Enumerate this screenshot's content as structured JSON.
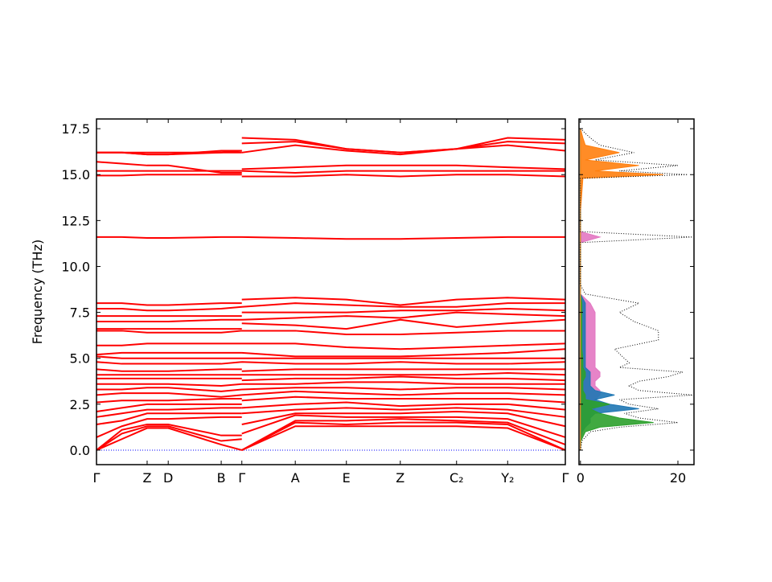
{
  "chart_data": [
    {
      "type": "line",
      "ylabel": "Frequency (THz)",
      "color": "#ff0000",
      "x": [
        0,
        0.54,
        1.08,
        1.53,
        2.66,
        3.1,
        3.1,
        3.1,
        4.24,
        5.33,
        6.48,
        7.68,
        8.77,
        10
      ],
      "xlim": [
        0,
        10
      ],
      "xticks": [
        {
          "value": 0,
          "label": "Γ"
        },
        {
          "value": 1.08,
          "label": "Z"
        },
        {
          "value": 1.53,
          "label": "D"
        },
        {
          "value": 2.66,
          "label": "B"
        },
        {
          "value": 3.1,
          "label": "Γ"
        },
        {
          "value": 4.24,
          "label": "A"
        },
        {
          "value": 5.33,
          "label": "E"
        },
        {
          "value": 6.48,
          "label": "Z"
        },
        {
          "value": 7.68,
          "label": "C₂"
        },
        {
          "value": 8.77,
          "label": "Y₂"
        },
        {
          "value": 10,
          "label": "Γ"
        }
      ],
      "ylim": [
        -0.79,
        18.03
      ],
      "yticks": [
        {
          "value": 0,
          "label": "0.0"
        },
        {
          "value": 2.5,
          "label": "2.5"
        },
        {
          "value": 5,
          "label": "5.0"
        },
        {
          "value": 7.5,
          "label": "7.5"
        },
        {
          "value": 10,
          "label": "10.0"
        },
        {
          "value": 12.5,
          "label": "12.5"
        },
        {
          "value": 15,
          "label": "15.0"
        },
        {
          "value": 17.5,
          "label": "17.5"
        }
      ],
      "series": [
        {
          "values": [
            0,
            0.6,
            1.2,
            1.2,
            0.3,
            0,
            null,
            0,
            1.3,
            1.3,
            1.3,
            1.3,
            1.2,
            0
          ]
        },
        {
          "values": [
            0,
            0.9,
            1.3,
            1.3,
            0.5,
            0.6,
            null,
            0,
            1.5,
            1.4,
            1.5,
            1.5,
            1.4,
            0
          ]
        },
        {
          "values": [
            0,
            1.1,
            1.4,
            1.4,
            0.8,
            0.8,
            null,
            0,
            1.6,
            1.6,
            1.7,
            1.6,
            1.5,
            0.3
          ]
        },
        {
          "values": [
            0.7,
            1.3,
            1.7,
            1.7,
            1.8,
            1.8,
            null,
            0.9,
            1.9,
            1.8,
            1.8,
            1.8,
            1.7,
            0.7
          ]
        },
        {
          "values": [
            1.4,
            1.6,
            2.0,
            2.0,
            2.0,
            2.0,
            null,
            1.4,
            2.0,
            2.0,
            2.0,
            2.1,
            2.0,
            1.3
          ]
        },
        {
          "values": [
            1.8,
            2.0,
            2.2,
            2.2,
            2.3,
            2.3,
            null,
            2.0,
            2.2,
            2.3,
            2.2,
            2.3,
            2.2,
            1.8
          ]
        },
        {
          "values": [
            2.1,
            2.3,
            2.5,
            2.5,
            2.5,
            2.5,
            null,
            2.3,
            2.5,
            2.6,
            2.4,
            2.5,
            2.5,
            2.2
          ]
        },
        {
          "values": [
            2.6,
            2.7,
            2.7,
            2.7,
            2.8,
            2.8,
            null,
            2.7,
            2.9,
            2.8,
            2.8,
            2.8,
            2.8,
            2.6
          ]
        },
        {
          "values": [
            3.0,
            3.1,
            3.1,
            3.1,
            2.9,
            3.0,
            null,
            3.0,
            3.2,
            3.1,
            3.0,
            3.1,
            3.1,
            3.0
          ]
        },
        {
          "values": [
            3.3,
            3.3,
            3.4,
            3.4,
            3.2,
            3.3,
            null,
            3.3,
            3.4,
            3.4,
            3.3,
            3.4,
            3.4,
            3.3
          ]
        },
        {
          "values": [
            3.6,
            3.6,
            3.6,
            3.6,
            3.5,
            3.6,
            null,
            3.6,
            3.6,
            3.7,
            3.7,
            3.6,
            3.6,
            3.6
          ]
        },
        {
          "values": [
            3.9,
            3.9,
            3.9,
            3.9,
            3.9,
            3.9,
            null,
            3.8,
            3.9,
            3.9,
            4.0,
            3.9,
            3.9,
            3.8
          ]
        },
        {
          "values": [
            4.1,
            4.1,
            4.1,
            4.1,
            4.1,
            4.1,
            null,
            4.1,
            4.1,
            4.1,
            4.1,
            4.1,
            4.2,
            4.1
          ]
        },
        {
          "values": [
            4.4,
            4.3,
            4.3,
            4.3,
            4.4,
            4.4,
            null,
            4.3,
            4.4,
            4.4,
            4.4,
            4.4,
            4.4,
            4.4
          ]
        },
        {
          "values": [
            4.8,
            4.7,
            4.7,
            4.7,
            4.7,
            4.8,
            null,
            4.8,
            4.7,
            4.7,
            4.8,
            4.7,
            4.7,
            4.8
          ]
        },
        {
          "values": [
            5.1,
            5.0,
            5.0,
            5.0,
            5.0,
            5.0,
            null,
            5.0,
            5.0,
            5.0,
            5.0,
            5.0,
            5.0,
            5.0
          ]
        },
        {
          "values": [
            5.2,
            5.3,
            5.3,
            5.3,
            5.3,
            5.3,
            null,
            5.3,
            5.1,
            5.1,
            5.1,
            5.2,
            5.3,
            5.5
          ]
        },
        {
          "values": [
            5.7,
            5.7,
            5.8,
            5.8,
            5.8,
            5.8,
            null,
            5.8,
            5.8,
            5.6,
            5.5,
            5.6,
            5.7,
            5.8
          ]
        },
        {
          "values": [
            6.5,
            6.5,
            6.4,
            6.4,
            6.4,
            6.5,
            null,
            6.5,
            6.5,
            6.3,
            6.3,
            6.4,
            6.5,
            6.5
          ]
        },
        {
          "values": [
            6.6,
            6.6,
            6.6,
            6.6,
            6.6,
            6.6,
            null,
            6.9,
            6.8,
            6.6,
            7.1,
            6.7,
            6.9,
            7.1
          ]
        },
        {
          "values": [
            7.0,
            7.0,
            7.0,
            7.0,
            7.1,
            7.1,
            null,
            7.1,
            7.2,
            7.3,
            7.2,
            7.5,
            7.4,
            7.3
          ]
        },
        {
          "values": [
            7.3,
            7.3,
            7.3,
            7.3,
            7.3,
            7.3,
            null,
            7.5,
            7.5,
            7.5,
            7.6,
            7.6,
            7.7,
            7.6
          ]
        },
        {
          "values": [
            7.7,
            7.7,
            7.6,
            7.6,
            7.7,
            7.8,
            null,
            7.8,
            8.0,
            7.9,
            7.8,
            7.8,
            8.0,
            8.0
          ]
        },
        {
          "values": [
            8.0,
            8.0,
            7.9,
            7.9,
            8.0,
            8.0,
            null,
            8.2,
            8.3,
            8.2,
            7.9,
            8.2,
            8.3,
            8.2
          ]
        },
        {
          "values": [
            11.6,
            11.6,
            11.55,
            11.55,
            11.6,
            11.6,
            null,
            11.6,
            11.55,
            11.5,
            11.5,
            11.55,
            11.6,
            11.6
          ]
        },
        {
          "values": [
            14.95,
            14.95,
            15.0,
            15.0,
            15.0,
            15.0,
            null,
            14.9,
            14.9,
            15.0,
            14.9,
            15.0,
            15.0,
            14.9
          ]
        },
        {
          "values": [
            15.2,
            15.2,
            15.2,
            15.2,
            15.2,
            15.2,
            null,
            15.2,
            15.1,
            15.2,
            15.2,
            15.2,
            15.2,
            15.2
          ]
        },
        {
          "values": [
            15.7,
            15.6,
            15.5,
            15.5,
            15.1,
            15.1,
            null,
            15.3,
            15.4,
            15.5,
            15.5,
            15.5,
            15.4,
            15.3
          ]
        },
        {
          "values": [
            16.2,
            16.2,
            16.1,
            16.1,
            16.3,
            16.3,
            null,
            16.2,
            16.6,
            16.3,
            16.1,
            16.4,
            16.6,
            16.3
          ]
        },
        {
          "values": [
            16.2,
            16.2,
            16.2,
            16.2,
            16.2,
            16.3,
            null,
            16.7,
            16.8,
            16.4,
            16.2,
            16.4,
            16.8,
            16.7
          ]
        },
        {
          "values": [
            16.2,
            16.2,
            16.1,
            16.1,
            16.2,
            16.2,
            null,
            17.0,
            16.9,
            16.4,
            16.2,
            16.4,
            17.0,
            16.9
          ]
        }
      ]
    },
    {
      "type": "dos",
      "y": [
        0,
        0.5,
        1.0,
        1.25,
        1.5,
        1.75,
        2.0,
        2.25,
        2.5,
        2.75,
        3.0,
        3.25,
        3.5,
        3.75,
        4.0,
        4.25,
        4.5,
        4.75,
        5.0,
        5.5,
        6.0,
        6.5,
        7.0,
        7.5,
        8.0,
        8.5,
        9,
        11.3,
        11.6,
        11.9,
        13,
        14.8,
        15.0,
        15.2,
        15.5,
        15.8,
        16.2,
        16.6,
        17.0,
        17.5
      ],
      "xlim": [
        -0.3,
        23.3
      ],
      "xticks": [
        0,
        20
      ],
      "ylim": [
        -0.79,
        18.03
      ],
      "total": {
        "color": "#000000",
        "values": [
          0,
          0.3,
          2,
          8,
          20,
          12,
          9,
          16,
          10,
          8,
          23,
          12,
          10,
          12,
          18,
          21,
          8,
          10,
          9,
          7,
          16,
          16,
          11,
          8,
          12,
          1,
          0,
          0,
          23,
          0,
          0,
          0,
          22,
          8,
          20,
          3,
          11,
          4,
          2,
          0
        ]
      },
      "series": [
        {
          "color": "#e377c2",
          "values": [
            0,
            0.1,
            0.5,
            1,
            2,
            2,
            2,
            3,
            3,
            3,
            4,
            4,
            3,
            3,
            4,
            4,
            3,
            3,
            3,
            3,
            3,
            3,
            3,
            3,
            2,
            0,
            0,
            0,
            4,
            0,
            0,
            0,
            0,
            0,
            0,
            0,
            0,
            0,
            0,
            0
          ]
        },
        {
          "color": "#1f77b4",
          "values": [
            0,
            0,
            0.3,
            1,
            2,
            2,
            3,
            12,
            6,
            3,
            7,
            3,
            2,
            2,
            2,
            2,
            1,
            1,
            1,
            1,
            1,
            1,
            1,
            1,
            1,
            0,
            0,
            0,
            0,
            0,
            0,
            0,
            0,
            0,
            0,
            0,
            0,
            0,
            0,
            0
          ]
        },
        {
          "color": "#2ca02c",
          "values": [
            0,
            0.1,
            1,
            4,
            15,
            8,
            4,
            2,
            6,
            1,
            1,
            0.5,
            0.5,
            0.5,
            1,
            1,
            0.5,
            0.5,
            0.5,
            0.3,
            0.3,
            0.3,
            0.3,
            0.3,
            0.3,
            0,
            0,
            0,
            0,
            0,
            0,
            0,
            0,
            0,
            0,
            0,
            0,
            0,
            0,
            0
          ]
        },
        {
          "color": "#ff7f0e",
          "values": [
            0,
            0,
            0,
            0,
            0,
            0,
            0,
            0,
            0,
            0,
            0,
            0,
            0,
            0,
            0,
            0,
            0,
            0,
            0,
            0,
            0,
            0,
            0,
            0,
            0,
            0,
            0,
            0,
            0,
            0,
            0,
            0.5,
            17,
            3,
            12,
            1,
            8,
            1,
            0.5,
            0
          ]
        }
      ]
    }
  ]
}
